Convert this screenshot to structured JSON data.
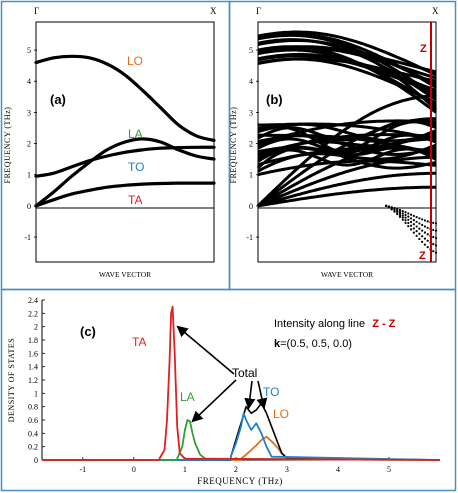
{
  "colors": {
    "frame": "#4a90c4",
    "band": "#000000",
    "lo": "#e07020",
    "la": "#30a030",
    "to": "#2080d0",
    "ta": "#e02020",
    "zline": "#c00000"
  },
  "panel_a": {
    "label": "(a)",
    "top_left_label": "Γ",
    "top_right_label": "X",
    "ylabel": "FREQUENCY (THz)",
    "xlabel": "WAVE VECTOR",
    "ytick_labels": [
      "5",
      "4",
      "3",
      "2",
      "1",
      "0",
      "-1"
    ],
    "branch_labels": {
      "lo": "LO",
      "la": "LA",
      "to": "TO",
      "ta": "TA"
    }
  },
  "panel_b": {
    "label": "(b)",
    "top_left_label": "Γ",
    "top_right_label": "X",
    "ylabel": "FREQUENCY (THz)",
    "xlabel": "WAVE VECTOR",
    "ytick_labels": [
      "5",
      "4",
      "3",
      "2",
      "1",
      "0",
      "-1"
    ],
    "z_top": "Z",
    "z_bottom": "Z"
  },
  "panel_c": {
    "label": "(c)",
    "ylabel": "DENSITY OF STATES",
    "xlabel": "FREQUENCY (THz)",
    "intensity_text": "Intensity along line",
    "intensity_range": "Z - Z",
    "k_bold": "k",
    "k_text": "=(0.5, 0.5, 0.0)",
    "total_label": "Total",
    "branch_labels": {
      "ta": "TA",
      "la": "LA",
      "to": "TO",
      "lo": "LO"
    }
  },
  "chart_data": [
    {
      "type": "line",
      "title": "",
      "xlabel": "WAVE VECTOR",
      "ylabel": "FREQUENCY (THz)",
      "ylim": [
        -1.8,
        5.9
      ],
      "x_ticks": [
        "Γ",
        "X"
      ],
      "series": [
        {
          "name": "LO",
          "x": [
            0,
            0.1,
            0.2,
            0.3,
            0.4,
            0.5,
            0.6,
            0.7,
            0.8,
            0.9,
            1.0
          ],
          "values": [
            4.6,
            4.75,
            4.8,
            4.75,
            4.55,
            4.2,
            3.7,
            3.15,
            2.6,
            2.25,
            2.1
          ]
        },
        {
          "name": "LA",
          "x": [
            0,
            0.1,
            0.2,
            0.3,
            0.4,
            0.5,
            0.6,
            0.7,
            0.8,
            0.9,
            1.0
          ],
          "values": [
            0.0,
            0.45,
            0.95,
            1.4,
            1.8,
            2.05,
            2.15,
            2.05,
            1.8,
            1.6,
            1.5
          ]
        },
        {
          "name": "TO",
          "x": [
            0,
            0.1,
            0.2,
            0.3,
            0.4,
            0.5,
            0.6,
            0.7,
            0.8,
            0.9,
            1.0
          ],
          "values": [
            0.95,
            1.05,
            1.25,
            1.45,
            1.6,
            1.72,
            1.8,
            1.85,
            1.87,
            1.88,
            1.88
          ]
        },
        {
          "name": "TA",
          "x": [
            0,
            0.1,
            0.2,
            0.3,
            0.4,
            0.5,
            0.6,
            0.7,
            0.8,
            0.9,
            1.0
          ],
          "values": [
            0.0,
            0.2,
            0.38,
            0.5,
            0.6,
            0.66,
            0.7,
            0.72,
            0.73,
            0.73,
            0.73
          ]
        }
      ]
    },
    {
      "type": "line",
      "title": "",
      "xlabel": "WAVE VECTOR",
      "ylabel": "FREQUENCY (THz)",
      "ylim": [
        -1.8,
        5.9
      ],
      "x_ticks": [
        "Γ",
        "X"
      ],
      "annotations": [
        "Z",
        "Z"
      ],
      "z_line_x": 0.98
    },
    {
      "type": "line",
      "title": "",
      "xlabel": "FREQUENCY (THz)",
      "ylabel": "DENSITY OF STATES",
      "xlim": [
        -1.8,
        6.0
      ],
      "ylim": [
        0,
        2.4
      ],
      "x_ticks": [
        -1,
        0,
        1,
        2,
        3,
        4,
        5
      ],
      "y_ticks": [
        0,
        0.2,
        0.4,
        0.6,
        0.8,
        1,
        1.2,
        1.4,
        1.6,
        1.8,
        2,
        2.2,
        2.4
      ],
      "series": [
        {
          "name": "TA",
          "x": [
            0.5,
            0.6,
            0.65,
            0.7,
            0.73,
            0.76,
            0.8,
            0.85,
            0.9,
            1.0
          ],
          "values": [
            0.02,
            0.15,
            0.6,
            1.5,
            2.2,
            2.3,
            1.6,
            0.5,
            0.1,
            0.02
          ]
        },
        {
          "name": "LA",
          "x": [
            0.85,
            0.95,
            1.0,
            1.05,
            1.1,
            1.15,
            1.2,
            1.3,
            1.4
          ],
          "values": [
            0.02,
            0.2,
            0.45,
            0.6,
            0.58,
            0.4,
            0.25,
            0.08,
            0.02
          ]
        },
        {
          "name": "TO",
          "x": [
            1.9,
            2.0,
            2.1,
            2.15,
            2.2,
            2.3,
            2.4,
            2.5,
            2.6,
            2.7
          ],
          "values": [
            0.05,
            0.25,
            0.5,
            0.7,
            0.6,
            0.45,
            0.55,
            0.4,
            0.2,
            0.05
          ]
        },
        {
          "name": "LO",
          "x": [
            2.1,
            2.2,
            2.3,
            2.4,
            2.5,
            2.6,
            2.7,
            2.8,
            2.9,
            3.0
          ],
          "values": [
            0.02,
            0.08,
            0.15,
            0.22,
            0.3,
            0.35,
            0.28,
            0.2,
            0.1,
            0.03
          ]
        },
        {
          "name": "Total",
          "x": [
            1.9,
            2.0,
            2.1,
            2.2,
            2.3,
            2.4,
            2.5,
            2.6,
            2.7,
            2.8,
            2.9,
            3.0
          ],
          "values": [
            0.05,
            0.3,
            0.55,
            0.8,
            0.7,
            0.75,
            0.85,
            0.7,
            0.5,
            0.3,
            0.1,
            0.03
          ]
        }
      ]
    }
  ]
}
